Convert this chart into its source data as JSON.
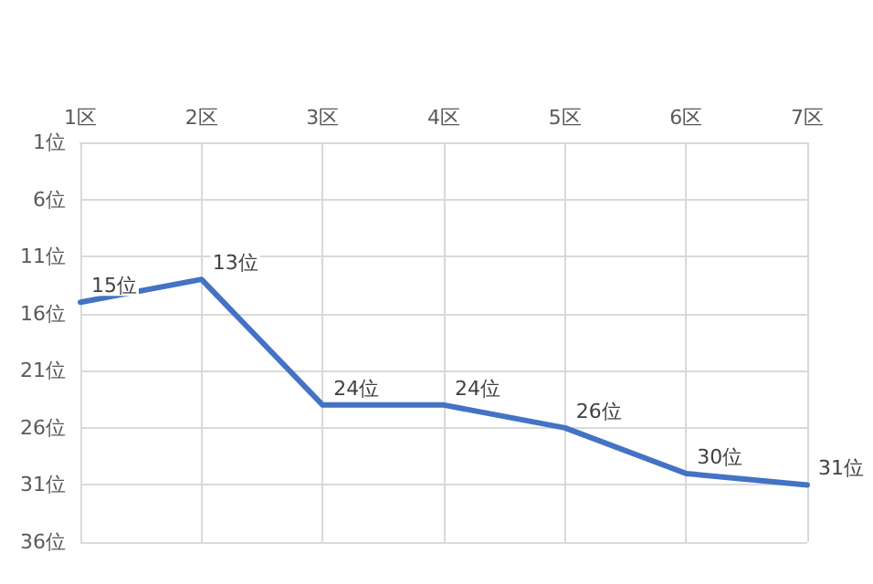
{
  "chart_data": {
    "type": "line",
    "categories": [
      "1区",
      "2区",
      "3区",
      "4区",
      "5区",
      "6区",
      "7区"
    ],
    "series": [
      {
        "color": "#4472c4",
        "values": [
          15,
          13,
          24,
          24,
          26,
          30,
          31
        ],
        "value_labels": [
          "15位",
          "13位",
          "24位",
          "24位",
          "26位",
          "30位",
          "31位"
        ]
      }
    ],
    "ylim": [
      36,
      1
    ],
    "yticks": [
      {
        "value": 1,
        "label": "1位"
      },
      {
        "value": 6,
        "label": "6位"
      },
      {
        "value": 11,
        "label": "11位"
      },
      {
        "value": 16,
        "label": "16位"
      },
      {
        "value": 21,
        "label": "21位"
      },
      {
        "value": 26,
        "label": "26位"
      },
      {
        "value": 31,
        "label": "31位"
      },
      {
        "value": 36,
        "label": "36位"
      }
    ],
    "grid": true,
    "marker": "none",
    "line_style": "solid"
  }
}
